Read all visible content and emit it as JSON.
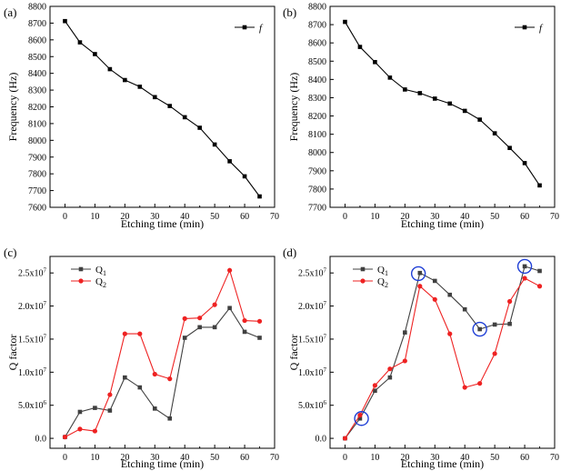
{
  "figure": "four-panel frequency and Q factor vs etching time",
  "chart_data": [
    {
      "panel": "(a)",
      "type": "line",
      "xlabel": "Etching time (min)",
      "ylabel": "Frequency (Hz)",
      "xlim": [
        -5,
        70
      ],
      "ylim": [
        7600,
        8800
      ],
      "xticks": [
        "0",
        "10",
        "20",
        "30",
        "40",
        "50",
        "60",
        "70"
      ],
      "yticks": [
        "7600",
        "7700",
        "7800",
        "7900",
        "8000",
        "8100",
        "8200",
        "8300",
        "8400",
        "8500",
        "8600",
        "8700",
        "8800"
      ],
      "series": [
        {
          "name": "f",
          "marker": "square",
          "color": "#000000",
          "x": [
            0,
            5,
            10,
            15,
            20,
            25,
            30,
            35,
            40,
            45,
            50,
            55,
            60,
            65
          ],
          "y": [
            8712,
            8585,
            8515,
            8425,
            8360,
            8320,
            8258,
            8205,
            8138,
            8075,
            7975,
            7875,
            7785,
            7665
          ]
        }
      ]
    },
    {
      "panel": "(b)",
      "type": "line",
      "xlabel": "Etching time (min)",
      "ylabel": "Frequency (Hz)",
      "xlim": [
        -5,
        70
      ],
      "ylim": [
        7700,
        8800
      ],
      "xticks": [
        "0",
        "10",
        "20",
        "30",
        "40",
        "50",
        "60",
        "70"
      ],
      "yticks": [
        "7700",
        "7800",
        "7900",
        "8000",
        "8100",
        "8200",
        "8300",
        "8400",
        "8500",
        "8600",
        "8700",
        "8800"
      ],
      "series": [
        {
          "name": "f",
          "marker": "square",
          "color": "#000000",
          "x": [
            0,
            5,
            10,
            15,
            20,
            25,
            30,
            35,
            40,
            45,
            50,
            55,
            60,
            65
          ],
          "y": [
            8715,
            8578,
            8495,
            8410,
            8345,
            8325,
            8295,
            8268,
            8228,
            8180,
            8105,
            8025,
            7942,
            7820
          ]
        }
      ]
    },
    {
      "panel": "(c)",
      "type": "line",
      "xlabel": "Etching time (min)",
      "ylabel": "Q factor",
      "xlim": [
        -5,
        70
      ],
      "ylim": [
        -0.15,
        2.75
      ],
      "xticks": [
        "0",
        "10",
        "20",
        "30",
        "40",
        "50",
        "60",
        "70"
      ],
      "yticks": [
        "0.0",
        "5.0x10^6",
        "1.0x10^7",
        "1.5x10^7",
        "2.0x10^7",
        "2.5x10^7"
      ],
      "series": [
        {
          "name": "Q1",
          "marker": "square",
          "color": "#404040",
          "x": [
            0,
            5,
            10,
            15,
            20,
            25,
            30,
            35,
            40,
            45,
            50,
            55,
            60,
            65
          ],
          "y": [
            0.02,
            0.4,
            0.46,
            0.42,
            0.92,
            0.77,
            0.45,
            0.3,
            1.52,
            1.68,
            1.68,
            1.97,
            1.61,
            1.52
          ]
        },
        {
          "name": "Q2",
          "marker": "circle",
          "color": "#ee2222",
          "x": [
            0,
            5,
            10,
            15,
            20,
            25,
            30,
            35,
            40,
            45,
            50,
            55,
            60,
            65
          ],
          "y": [
            0.02,
            0.14,
            0.11,
            0.66,
            1.58,
            1.58,
            0.97,
            0.9,
            1.81,
            1.82,
            2.02,
            2.54,
            1.78,
            1.77
          ]
        }
      ]
    },
    {
      "panel": "(d)",
      "type": "line",
      "xlabel": "Etching time (min)",
      "ylabel": "Q factor",
      "xlim": [
        -5,
        70
      ],
      "ylim": [
        -0.15,
        2.75
      ],
      "xticks": [
        "0",
        "10",
        "20",
        "30",
        "40",
        "50",
        "60",
        "70"
      ],
      "yticks": [
        "0.0",
        "5.0x10^6",
        "1.0x10^7",
        "1.5x10^7",
        "2.0x10^7",
        "2.5x10^7"
      ],
      "series": [
        {
          "name": "Q1",
          "marker": "square",
          "color": "#404040",
          "x": [
            0,
            5,
            10,
            15,
            20,
            25,
            30,
            35,
            40,
            45,
            50,
            55,
            60,
            65
          ],
          "y": [
            0.0,
            0.3,
            0.72,
            0.92,
            1.6,
            2.5,
            2.38,
            2.17,
            1.95,
            1.65,
            1.72,
            1.73,
            2.6,
            2.53
          ]
        },
        {
          "name": "Q2",
          "marker": "circle",
          "color": "#ee2222",
          "x": [
            0,
            5,
            10,
            15,
            20,
            25,
            30,
            35,
            40,
            45,
            50,
            55,
            60,
            65
          ],
          "y": [
            0.0,
            0.35,
            0.8,
            1.05,
            1.17,
            2.3,
            2.1,
            1.58,
            0.77,
            0.83,
            1.28,
            2.07,
            2.42,
            2.3
          ]
        }
      ],
      "highlights": [
        [
          5.5,
          0.3
        ],
        [
          24.5,
          2.49
        ],
        [
          45,
          1.65
        ],
        [
          60,
          2.6
        ]
      ],
      "highlight_color": "#1f3fd6"
    }
  ]
}
